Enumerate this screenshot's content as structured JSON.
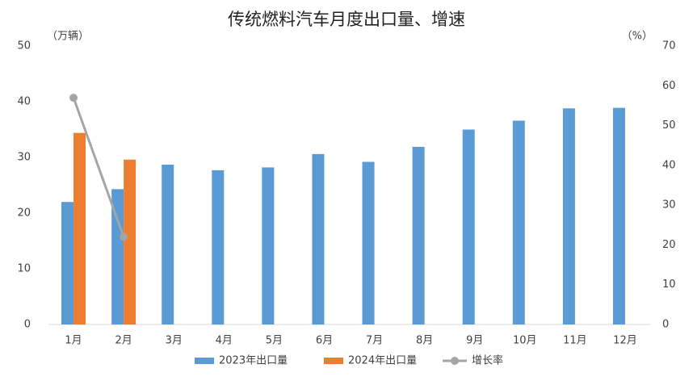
{
  "chart_data": {
    "type": "bar",
    "title": "传统燃料汽车月度出口量、增速",
    "y_label": "（万辆）",
    "y2_label": "（%）",
    "categories": [
      "1月",
      "2月",
      "3月",
      "4月",
      "5月",
      "6月",
      "7月",
      "8月",
      "9月",
      "10月",
      "11月",
      "12月"
    ],
    "series": [
      {
        "name": "2023年出口量",
        "color": "#5b9bd5",
        "values": [
          22,
          24.3,
          28.7,
          27.7,
          28.2,
          30.6,
          29.2,
          31.9,
          35,
          36.6,
          38.8,
          38.9
        ]
      },
      {
        "name": "2024年出口量",
        "color": "#ed7d31",
        "values": [
          34.4,
          29.6,
          null,
          null,
          null,
          null,
          null,
          null,
          null,
          null,
          null,
          null
        ]
      },
      {
        "name": "增长率",
        "color": "#a5a5a5",
        "type": "line",
        "axis": "y2",
        "values": [
          57,
          22,
          null,
          null,
          null,
          null,
          null,
          null,
          null,
          null,
          null,
          null
        ]
      }
    ],
    "ylim": [
      0,
      50
    ],
    "yticks": [
      0,
      10,
      20,
      30,
      40,
      50
    ],
    "y2lim": [
      0,
      70
    ],
    "y2ticks": [
      0,
      10,
      20,
      30,
      40,
      50,
      60,
      70
    ],
    "grid": false,
    "legend": "bottom"
  }
}
